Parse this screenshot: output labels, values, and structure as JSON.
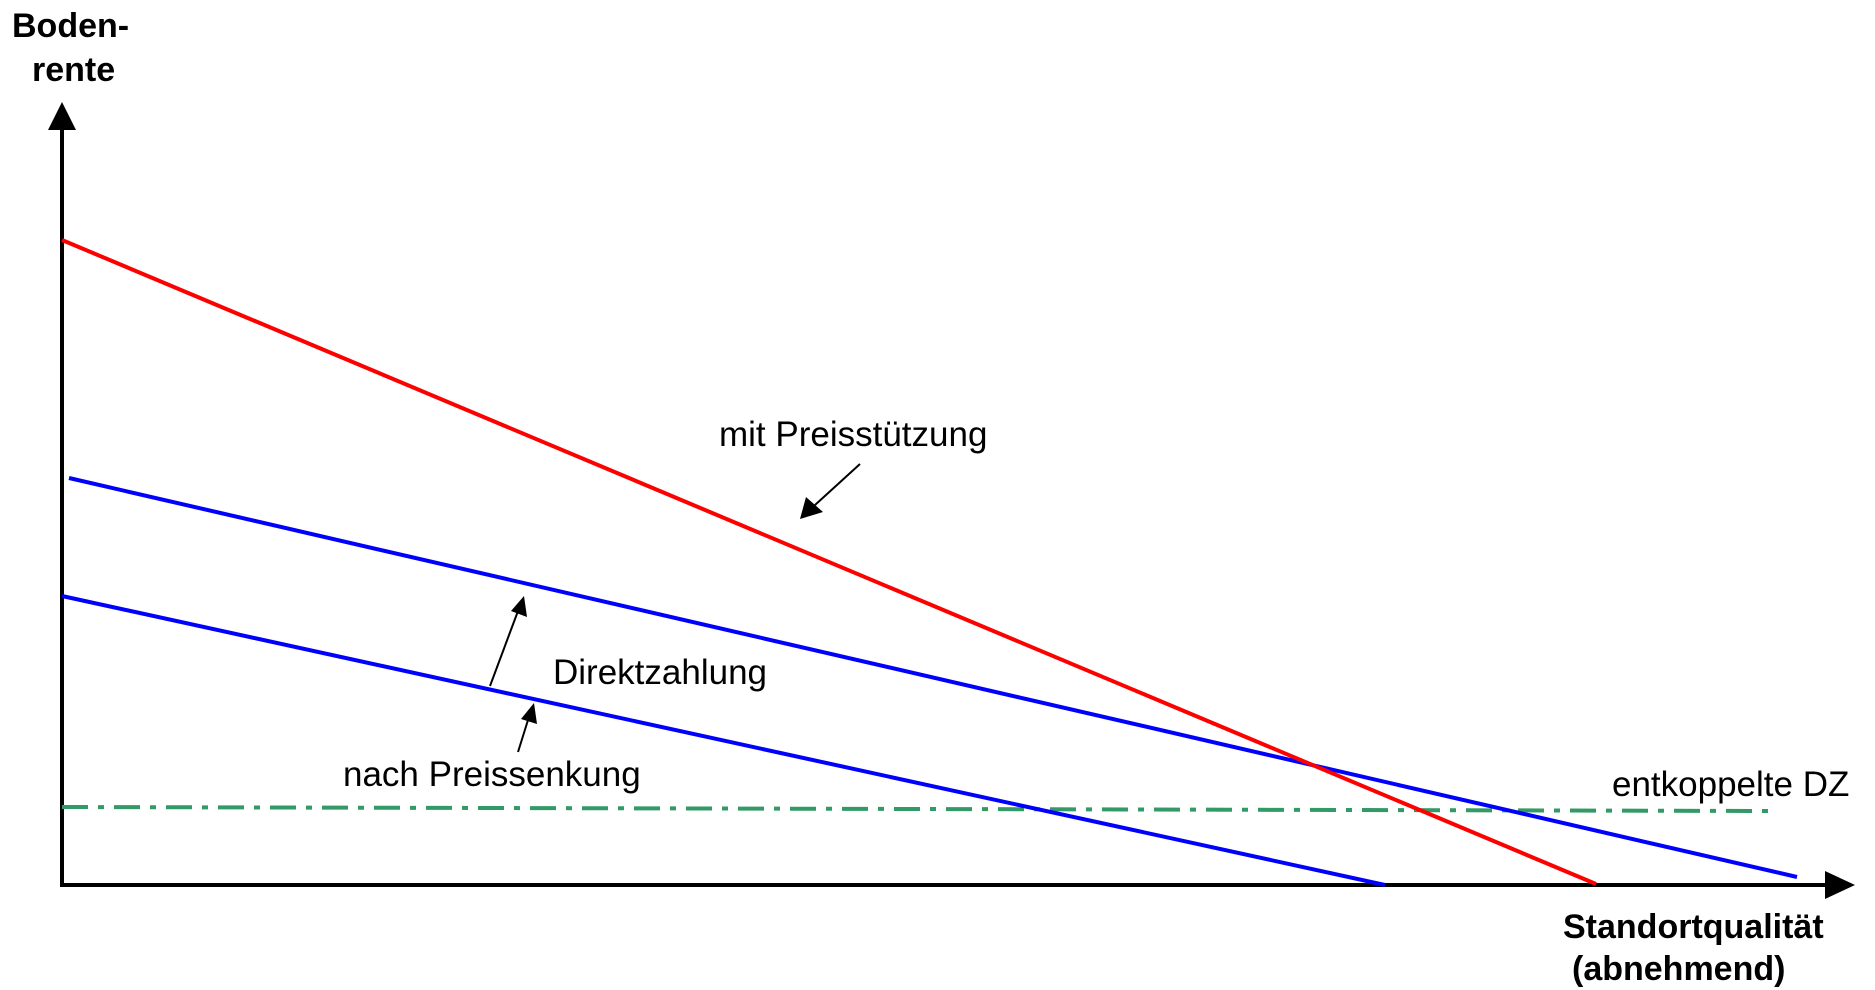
{
  "axes": {
    "y_label_line1": "Boden-",
    "y_label_line2": "rente",
    "x_label_line1": "Standortqualität",
    "x_label_line2": "(abnehmend)"
  },
  "labels": {
    "price_support": "mit Preisstützung",
    "direct_payment": "Direktzahlung",
    "after_price_cut": "nach Preissenkung",
    "decoupled_dp": "entkoppelte DZ"
  },
  "colors": {
    "axis": "#000000",
    "price_support_line": "#ff0000",
    "direct_payment_line": "#0000ff",
    "after_price_cut_line": "#0000ff",
    "decoupled_line": "#339966"
  }
}
